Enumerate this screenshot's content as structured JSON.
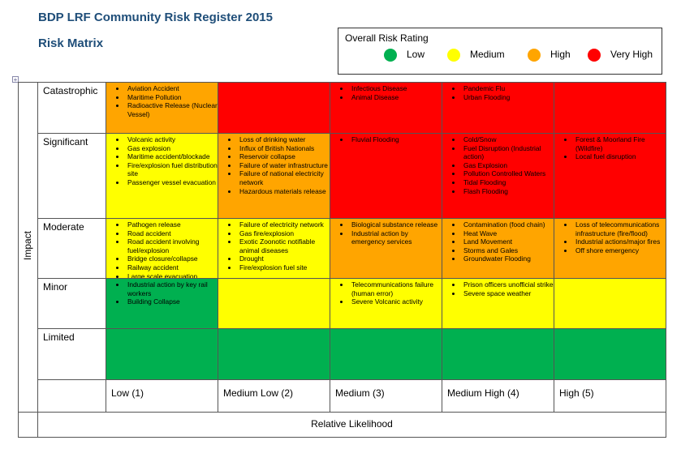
{
  "header": {
    "title": "BDP LRF Community Risk Register 2015",
    "subtitle": "Risk Matrix"
  },
  "legend": {
    "title": "Overall Risk Rating",
    "items": [
      {
        "name": "Low",
        "color": "#00b050"
      },
      {
        "name": "Medium",
        "color": "#ffff00"
      },
      {
        "name": "High",
        "color": "#ffa500"
      },
      {
        "name": "Very High",
        "color": "#ff0000"
      }
    ]
  },
  "matrix": {
    "y_label": "Impact",
    "x_label": "Relative Likelihood",
    "columns": [
      "Low (1)",
      "Medium Low (2)",
      "Medium (3)",
      "Medium High (4)",
      "High (5)"
    ],
    "rows": [
      {
        "label": "Catastrophic",
        "cells": [
          {
            "color": "#ffa500",
            "items": [
              "Aviation Accident",
              "Maritime Pollution",
              "Radioactive Release (Nuclear Vessel)"
            ]
          },
          {
            "color": "#ff0000",
            "items": []
          },
          {
            "color": "#ff0000",
            "items": [
              "Infectious Disease",
              "Animal Disease"
            ]
          },
          {
            "color": "#ff0000",
            "items": [
              "Pandemic Flu",
              "Urban Flooding"
            ]
          },
          {
            "color": "#ff0000",
            "items": []
          }
        ]
      },
      {
        "label": "Significant",
        "cells": [
          {
            "color": "#ffff00",
            "items": [
              "Volcanic activity",
              "Gas explosion",
              "Maritime accident/blockade",
              "Fire/explosion fuel distribution site",
              "Passenger vessel evacuation"
            ]
          },
          {
            "color": "#ffa500",
            "items": [
              "Loss of drinking water",
              "Influx of British Nationals",
              "Reservoir collapse",
              "Failure of water infrastructure",
              "Failure of national electricity network",
              "Hazardous materials release"
            ]
          },
          {
            "color": "#ff0000",
            "items": [
              "Fluvial Flooding"
            ]
          },
          {
            "color": "#ff0000",
            "items": [
              "Cold/Snow",
              "Fuel Disruption (Industrial action)",
              "Gas Explosion",
              "Pollution Controlled Waters",
              "Tidal Flooding",
              "Flash Flooding"
            ]
          },
          {
            "color": "#ff0000",
            "items": [
              "Forest & Moorland Fire (Wildfire)",
              "Local fuel disruption"
            ]
          }
        ]
      },
      {
        "label": "Moderate",
        "cells": [
          {
            "color": "#ffff00",
            "items": [
              "Pathogen release",
              "Road accident",
              "Road accident involving fuel/explosion",
              "Bridge closure/collapse",
              "Railway accident",
              "Large scale evacuation"
            ]
          },
          {
            "color": "#ffff00",
            "items": [
              "Failure of electricity network",
              "Gas fire/explosion",
              "Exotic Zoonotic notifiable animal diseases",
              "Drought",
              "Fire/explosion fuel site"
            ]
          },
          {
            "color": "#ffa500",
            "items": [
              "Biological substance release",
              "Industrial action by emergency services"
            ]
          },
          {
            "color": "#ffa500",
            "items": [
              "Contamination (food chain)",
              "Heat Wave",
              "Land Movement",
              "Storms and Gales",
              "Groundwater Flooding"
            ]
          },
          {
            "color": "#ffa500",
            "items": [
              "Loss of telecommunications infrastructure (fire/flood)",
              "Industrial actions/major fires",
              "Off shore emergency"
            ]
          }
        ]
      },
      {
        "label": "Minor",
        "cells": [
          {
            "color": "#00b050",
            "items": [
              "Industrial action by key rail workers",
              "Building Collapse"
            ]
          },
          {
            "color": "#ffff00",
            "items": []
          },
          {
            "color": "#ffff00",
            "items": [
              "Telecommunications failure (human error)",
              "Severe Volcanic activity"
            ]
          },
          {
            "color": "#ffff00",
            "items": [
              "Prison officers unofficial strike",
              "Severe space weather"
            ]
          },
          {
            "color": "#ffff00",
            "items": []
          }
        ]
      },
      {
        "label": "Limited",
        "cells": [
          {
            "color": "#00b050",
            "items": []
          },
          {
            "color": "#00b050",
            "items": []
          },
          {
            "color": "#00b050",
            "items": []
          },
          {
            "color": "#00b050",
            "items": []
          },
          {
            "color": "#00b050",
            "items": []
          }
        ]
      }
    ]
  }
}
